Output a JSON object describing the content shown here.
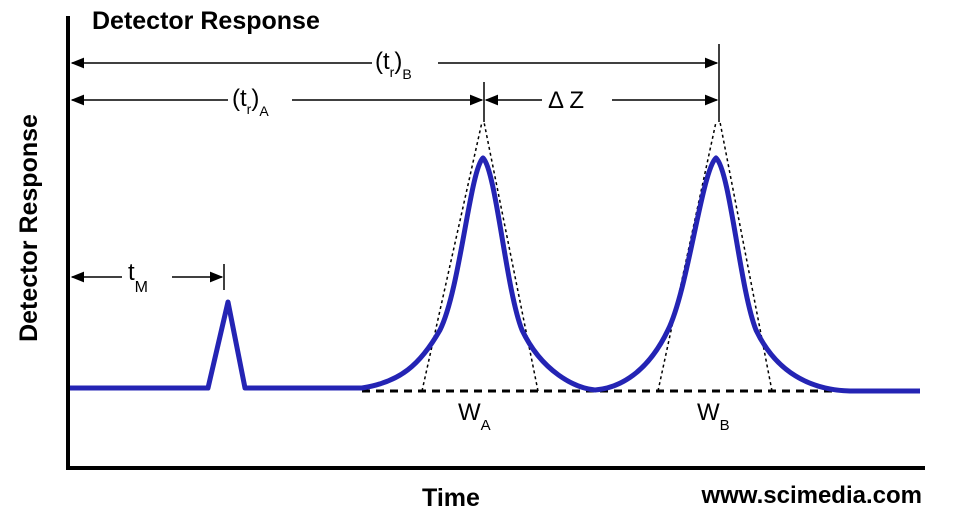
{
  "title": "Detector Response",
  "y_axis_label": "Detector Response",
  "x_axis_label": "Time",
  "watermark": "www.scimedia.com",
  "annotations": {
    "tr_b": {
      "main": "(t",
      "sub": "r",
      "tail": ")",
      "tail_sub": "B"
    },
    "tr_a": {
      "main": "(t",
      "sub": "r",
      "tail": ")",
      "tail_sub": "A"
    },
    "delta_z": "Δ Z",
    "t_m": {
      "main": "t",
      "sub": "M"
    },
    "w_a": {
      "main": "W",
      "sub": "A"
    },
    "w_b": {
      "main": "W",
      "sub": "B"
    }
  },
  "colors": {
    "trace": "#2424b4",
    "axis": "#000000",
    "background": "#ffffff"
  }
}
